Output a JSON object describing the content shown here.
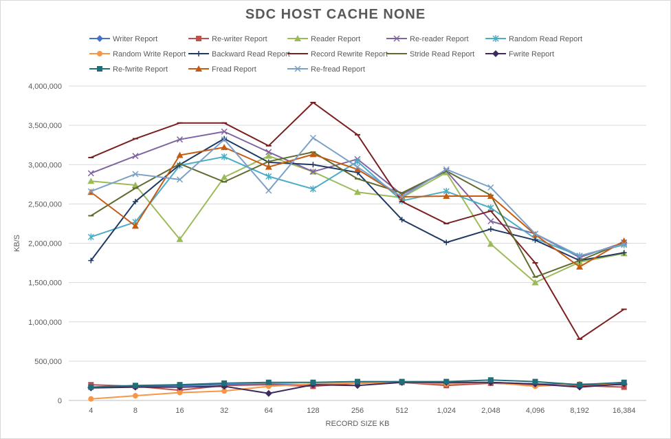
{
  "chart_data": {
    "type": "line",
    "title": "SDC HOST CACHE NONE",
    "xlabel": "RECORD SIZE KB",
    "ylabel": "KB/S",
    "categories": [
      "4",
      "8",
      "16",
      "32",
      "64",
      "128",
      "256",
      "512",
      "1,024",
      "2,048",
      "4,096",
      "8,192",
      "16,384"
    ],
    "ylim": [
      0,
      4000000
    ],
    "yticks": [
      "0",
      "500,000",
      "1,000,000",
      "1,500,000",
      "2,000,000",
      "2,500,000",
      "3,000,000",
      "3,500,000",
      "4,000,000"
    ],
    "grid": true,
    "legend_position": "top",
    "series": [
      {
        "name": "Writer Report",
        "color": "#4472c4",
        "marker": "diamond",
        "values": [
          170000,
          180000,
          190000,
          200000,
          210000,
          200000,
          220000,
          230000,
          220000,
          230000,
          210000,
          200000,
          200000
        ]
      },
      {
        "name": "Re-writer Report",
        "color": "#c0504d",
        "marker": "square",
        "values": [
          200000,
          180000,
          130000,
          190000,
          200000,
          180000,
          220000,
          230000,
          190000,
          220000,
          200000,
          190000,
          170000
        ]
      },
      {
        "name": "Reader Report",
        "color": "#9bbb59",
        "marker": "triangle",
        "values": [
          2790000,
          2740000,
          2050000,
          2840000,
          3110000,
          2910000,
          2650000,
          2580000,
          2900000,
          1990000,
          1500000,
          1760000,
          1870000
        ]
      },
      {
        "name": "Re-reader Report",
        "color": "#8064a2",
        "marker": "x",
        "values": [
          2890000,
          3110000,
          3320000,
          3420000,
          3160000,
          2910000,
          3070000,
          2620000,
          2920000,
          2280000,
          2120000,
          1820000,
          2010000
        ]
      },
      {
        "name": "Random Read Report",
        "color": "#4bacc6",
        "marker": "star",
        "values": [
          2080000,
          2270000,
          2990000,
          3100000,
          2850000,
          2690000,
          3040000,
          2540000,
          2660000,
          2450000,
          2060000,
          1840000,
          1980000
        ]
      },
      {
        "name": "Random Write Report",
        "color": "#f79646",
        "marker": "circle",
        "values": [
          20000,
          60000,
          100000,
          120000,
          180000,
          210000,
          220000,
          230000,
          210000,
          230000,
          180000,
          210000,
          210000
        ]
      },
      {
        "name": "Backward Read Report",
        "color": "#1f3864",
        "marker": "plus",
        "values": [
          1780000,
          2530000,
          3000000,
          3330000,
          3030000,
          3000000,
          2900000,
          2300000,
          2010000,
          2180000,
          2040000,
          1780000,
          1880000
        ]
      },
      {
        "name": "Record Rewrite Report",
        "color": "#7b2020",
        "marker": "dash",
        "values": [
          3090000,
          3330000,
          3530000,
          3530000,
          3240000,
          3790000,
          3380000,
          2530000,
          2250000,
          2410000,
          1750000,
          780000,
          1160000
        ]
      },
      {
        "name": "Stride Read Report",
        "color": "#5f6b2e",
        "marker": "dash",
        "values": [
          2350000,
          2700000,
          3010000,
          2780000,
          3040000,
          3160000,
          2820000,
          2640000,
          2920000,
          2610000,
          1570000,
          1780000,
          2010000
        ]
      },
      {
        "name": "Fwrite Report",
        "color": "#3e2a5c",
        "marker": "diamond",
        "values": [
          160000,
          170000,
          170000,
          180000,
          90000,
          200000,
          190000,
          230000,
          230000,
          230000,
          210000,
          170000,
          210000
        ]
      },
      {
        "name": "Re-fwrite Report",
        "color": "#1f6e7a",
        "marker": "square",
        "values": [
          170000,
          190000,
          200000,
          220000,
          230000,
          230000,
          240000,
          240000,
          240000,
          260000,
          240000,
          200000,
          230000
        ]
      },
      {
        "name": "Fread Report",
        "color": "#c55a11",
        "marker": "triangle",
        "values": [
          2650000,
          2220000,
          3120000,
          3220000,
          2970000,
          3130000,
          2940000,
          2590000,
          2600000,
          2600000,
          2110000,
          1700000,
          2030000
        ]
      },
      {
        "name": "Re-fread Report",
        "color": "#7ba0c8",
        "marker": "x",
        "values": [
          2660000,
          2880000,
          2810000,
          3320000,
          2670000,
          3340000,
          2970000,
          2590000,
          2940000,
          2710000,
          2120000,
          1840000,
          1990000
        ]
      }
    ]
  }
}
